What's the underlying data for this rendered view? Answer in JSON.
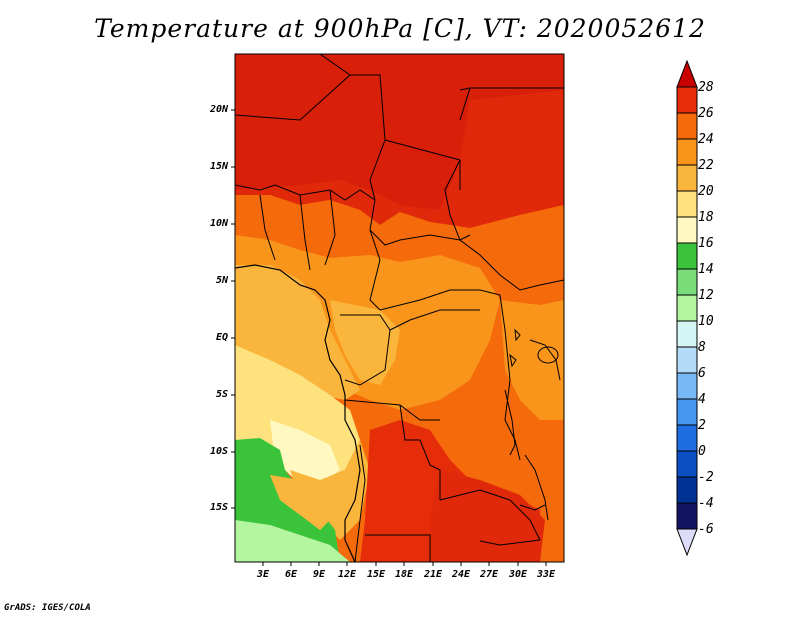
{
  "title": "Temperature at 900hPa [C], VT: 2020052612",
  "credit": "GrADS: IGES/COLA",
  "map": {
    "region": "Central Africa",
    "lat_ticks": [
      "20N",
      "15N",
      "10N",
      "5N",
      "EQ",
      "5S",
      "10S",
      "15S"
    ],
    "lon_ticks": [
      "3E",
      "6E",
      "9E",
      "12E",
      "15E",
      "18E",
      "21E",
      "24E",
      "27E",
      "30E",
      "33E"
    ]
  },
  "colorbar": {
    "labels": [
      "28",
      "26",
      "24",
      "22",
      "20",
      "18",
      "16",
      "14",
      "12",
      "10",
      "8",
      "6",
      "4",
      "2",
      "0",
      "-2",
      "-4",
      "-6"
    ],
    "colors": [
      "#c80000",
      "#e62d0a",
      "#f56a0b",
      "#f8951a",
      "#fab63c",
      "#fde27e",
      "#fff8c0",
      "#3cc33c",
      "#78dc78",
      "#b4f5a0",
      "#d5f5f5",
      "#b4dcf8",
      "#78b9f5",
      "#4696f0",
      "#1e6ee1",
      "#0a50c3",
      "#003296",
      "#141464",
      "#dcdcf8"
    ]
  }
}
